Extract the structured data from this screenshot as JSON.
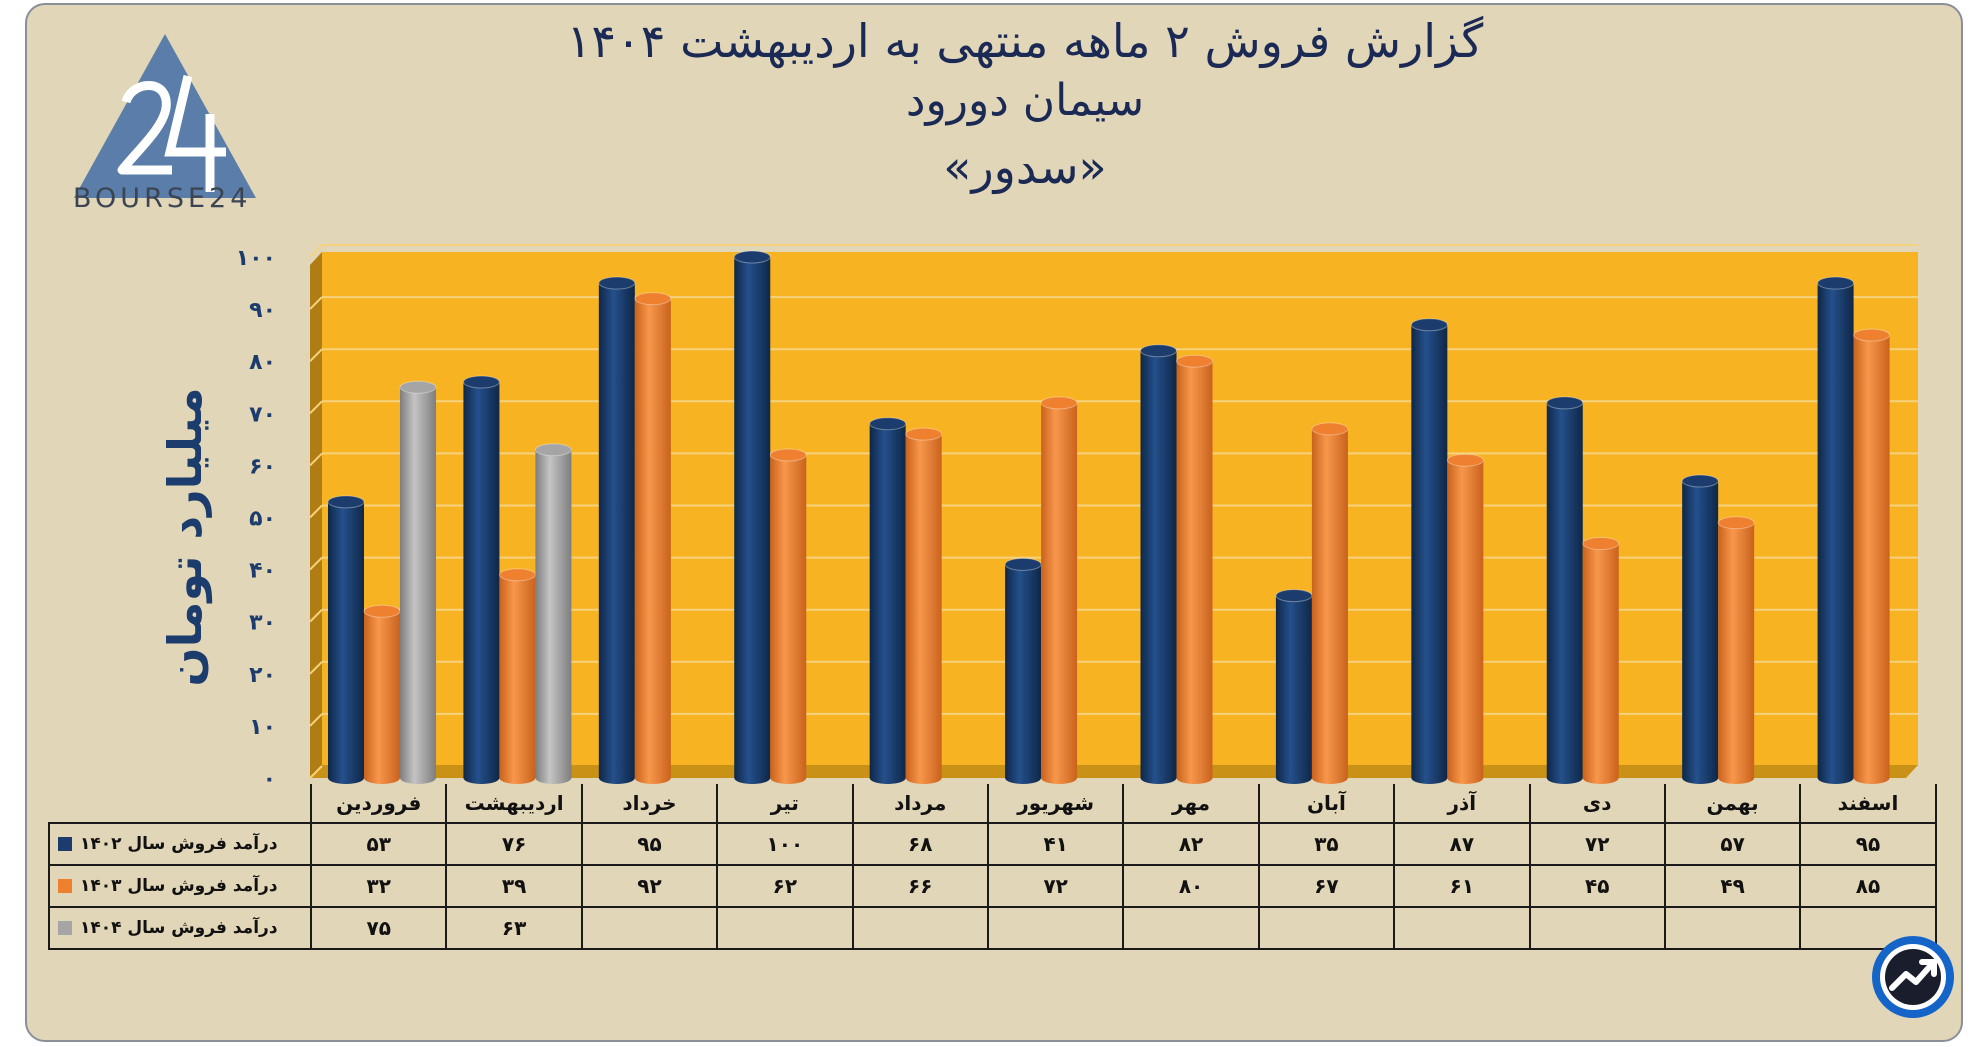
{
  "title": {
    "line1": "گزارش  فروش ۲ ماهه منتهی به اردیبهشت ۱۴۰۴",
    "line2": "سیمان دورود",
    "line3": "«سدور»"
  },
  "logo": {
    "text": "BOURSE24"
  },
  "colors": {
    "background": "#e2d6b8",
    "plot_area": "#f7b321",
    "series_1402": "#1b3c6c",
    "series_1403": "#ee8030",
    "series_1404": "#a5a5a5"
  },
  "icons": {
    "logo": "bourse24-triangle-logo",
    "corner": "trend-arrow-circle-icon"
  },
  "chart_data": {
    "type": "bar",
    "categories": [
      "فروردین",
      "اردیبهشت",
      "خرداد",
      "تیر",
      "مرداد",
      "شهریور",
      "مهر",
      "آبان",
      "آذر",
      "دی",
      "بهمن",
      "اسفند"
    ],
    "series": [
      {
        "name": "درآمد فروش سال ۱۴۰۲",
        "values": [
          53,
          76,
          95,
          100,
          68,
          41,
          82,
          35,
          87,
          72,
          57,
          95
        ],
        "labels": [
          "۵۳",
          "۷۶",
          "۹۵",
          "۱۰۰",
          "۶۸",
          "۴۱",
          "۸۲",
          "۳۵",
          "۸۷",
          "۷۲",
          "۵۷",
          "۹۵"
        ]
      },
      {
        "name": "درآمد فروش سال ۱۴۰۳",
        "values": [
          32,
          39,
          92,
          62,
          66,
          72,
          80,
          67,
          61,
          45,
          49,
          85
        ],
        "labels": [
          "۳۲",
          "۳۹",
          "۹۲",
          "۶۲",
          "۶۶",
          "۷۲",
          "۸۰",
          "۶۷",
          "۶۱",
          "۴۵",
          "۴۹",
          "۸۵"
        ]
      },
      {
        "name": "درآمد فروش سال ۱۴۰۴",
        "values": [
          75,
          63,
          null,
          null,
          null,
          null,
          null,
          null,
          null,
          null,
          null,
          null
        ],
        "labels": [
          "۷۵",
          "۶۳",
          "",
          "",
          "",
          "",
          "",
          "",
          "",
          "",
          "",
          ""
        ]
      }
    ],
    "ylabel": "میلیارد تومان",
    "ylim": [
      0,
      100
    ],
    "yticks": [
      0,
      10,
      20,
      30,
      40,
      50,
      60,
      70,
      80,
      90,
      100
    ],
    "ytick_labels": [
      "۰",
      "۱۰",
      "۲۰",
      "۳۰",
      "۴۰",
      "۵۰",
      "۶۰",
      "۷۰",
      "۸۰",
      "۹۰",
      "۱۰۰"
    ],
    "grid": true,
    "legend": "data-table-left"
  }
}
